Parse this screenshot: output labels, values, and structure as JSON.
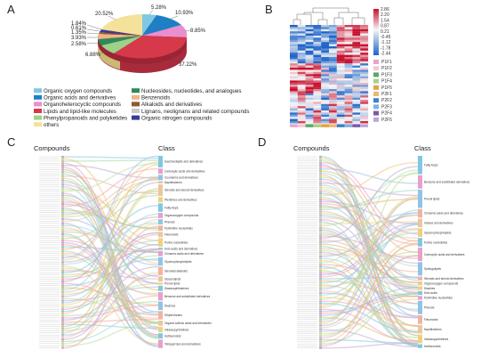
{
  "panels": {
    "A": "A",
    "B": "B",
    "C": "C",
    "D": "D"
  },
  "pie": {
    "labels_pct": [
      "5.28%",
      "10.93%",
      "8.85%",
      "37.22%",
      "6.88%",
      "2.58%",
      "3.93%",
      "1.35%",
      "0.61%",
      "1.84%",
      "20.52%"
    ],
    "legend": [
      {
        "label": "Organic oxygen compounds",
        "color": "#7ec8e3"
      },
      {
        "label": "Nucleosides, nucleotides, and analogues",
        "color": "#2e8b57"
      },
      {
        "label": "Organic acids and derivatives",
        "color": "#1f7fc4"
      },
      {
        "label": "Benzenoids",
        "color": "#f0b48a"
      },
      {
        "label": "Organoheterocyclic compounds",
        "color": "#e98fcf"
      },
      {
        "label": "Alkaloids and derivatives",
        "color": "#8b5a2b"
      },
      {
        "label": "Lipids and lipid-like molecules",
        "color": "#d5394a"
      },
      {
        "label": "Lignans, neolignans and related compounds",
        "color": "#c9c9c9"
      },
      {
        "label": "Phenylpropanoids and polyketides",
        "color": "#9fd18b"
      },
      {
        "label": "Organic nitrogen compounds",
        "color": "#3a3a9a"
      },
      {
        "label": "others",
        "color": "#f4e29a"
      }
    ]
  },
  "heatmap": {
    "scale": [
      "2.86",
      "2.20",
      "1.54",
      "0.87",
      "0.21",
      "-0.45",
      "-1.12",
      "-1.78",
      "-2.44"
    ],
    "groups": [
      {
        "label": "P1F1",
        "color": "#e6a7c7"
      },
      {
        "label": "P1F2",
        "color": "#f3c7d8"
      },
      {
        "label": "P1F3",
        "color": "#5aa86a"
      },
      {
        "label": "P1F4",
        "color": "#a8d08d"
      },
      {
        "label": "P1F5",
        "color": "#e1a441"
      },
      {
        "label": "P2F1",
        "color": "#f0b770"
      },
      {
        "label": "P2F2",
        "color": "#3d83c5"
      },
      {
        "label": "P2F3",
        "color": "#7fb2e0"
      },
      {
        "label": "P2F4",
        "color": "#7b5aa6"
      },
      {
        "label": "P2F5",
        "color": "#b9a7d6"
      }
    ]
  },
  "sankeyC": {
    "left_header": "Compounds",
    "right_header": "Class",
    "classes": [
      "Saccharolipids and derivatives",
      "Carboxylic acids and derivatives",
      "Coumarins and derivatives",
      "Naphthalenes",
      "Steroids and steroid derivatives",
      "Pteridines and derivatives",
      "Fatty Acyls",
      "Organooxygen compounds",
      "Phenols",
      "Pyrimidine nucleotides",
      "Flavonoids",
      "Purine nucleotides",
      "Keto acids and derivatives",
      "Cinnamic acids and derivatives",
      "Glycerophospholipids",
      "Steroidal alkaloids",
      "Glycerolipids",
      "Prenol lipids",
      "Diazanaphthalenes",
      "Benzene and substituted derivatives",
      "Diazines",
      "Dihydrofurans",
      "Organic sulfuric acids and derivatives",
      "Imidazopyrimidines",
      "Isoflavonoids",
      "Tetrapyrroles and derivatives"
    ]
  },
  "sankeyD": {
    "left_header": "Compounds",
    "right_header": "Class",
    "classes": [
      "Fatty Acyls",
      "Benzene and substituted derivatives",
      "Prenol lipids",
      "Cinnamic acids and derivatives",
      "Indoles and derivatives",
      "Glycerophospholipids",
      "Purine nucleotides",
      "Carboxylic acids and derivatives",
      "Sphingolipids",
      "Steroids and steroid derivatives",
      "Organooxygen compounds",
      "Diazines",
      "Keto acids",
      "Pyrimidine nucleotides",
      "Phenols",
      "Flavonoids",
      "Naphthalenes",
      "Imidazopyrimidines",
      "Isoflavonoids"
    ]
  }
}
